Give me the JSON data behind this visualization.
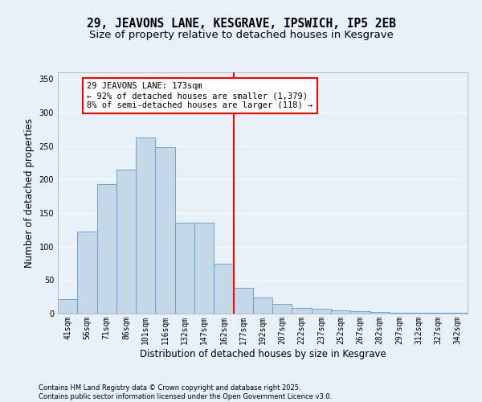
{
  "title": "29, JEAVONS LANE, KESGRAVE, IPSWICH, IP5 2EB",
  "subtitle": "Size of property relative to detached houses in Kesgrave",
  "xlabel": "Distribution of detached houses by size in Kesgrave",
  "ylabel": "Number of detached properties",
  "categories": [
    "41sqm",
    "56sqm",
    "71sqm",
    "86sqm",
    "101sqm",
    "116sqm",
    "132sqm",
    "147sqm",
    "162sqm",
    "177sqm",
    "192sqm",
    "207sqm",
    "222sqm",
    "237sqm",
    "252sqm",
    "267sqm",
    "282sqm",
    "297sqm",
    "312sqm",
    "327sqm",
    "342sqm"
  ],
  "bar_heights": [
    22,
    122,
    193,
    215,
    263,
    248,
    136,
    136,
    75,
    38,
    24,
    14,
    9,
    7,
    5,
    4,
    2,
    1,
    1,
    1,
    1
  ],
  "bar_color": "#c5d8e8",
  "bar_edgecolor": "#5b9bd5",
  "vline_x": 8.5,
  "vline_color": "red",
  "annotation_text": "29 JEAVONS LANE: 173sqm\n← 92% of detached houses are smaller (1,379)\n8% of semi-detached houses are larger (118) →",
  "ylim": [
    0,
    360
  ],
  "yticks": [
    0,
    50,
    100,
    150,
    200,
    250,
    300,
    350
  ],
  "background_color": "#e8f0f8",
  "grid_color": "white",
  "footer": "Contains HM Land Registry data © Crown copyright and database right 2025.\nContains public sector information licensed under the Open Government Licence v3.0.",
  "title_fontsize": 10.5,
  "subtitle_fontsize": 9.5,
  "xlabel_fontsize": 8.5,
  "ylabel_fontsize": 8.5,
  "tick_fontsize": 7,
  "annotation_fontsize": 7.5,
  "footer_fontsize": 6
}
